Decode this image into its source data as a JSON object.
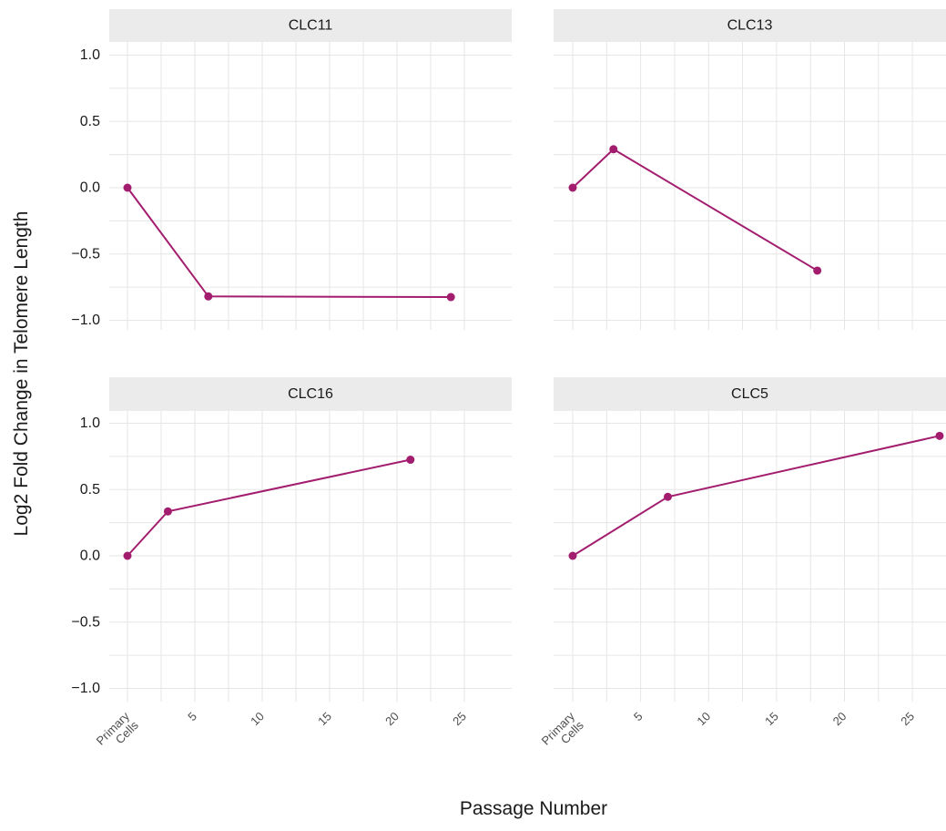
{
  "chart_data": {
    "type": "line",
    "xlabel": "Passage Number",
    "ylabel": "Log2 Fold Change in Telomere Length",
    "xlim": [
      0,
      27
    ],
    "ylim": [
      -1.0,
      1.0
    ],
    "x_ticks": [
      {
        "value": 0,
        "label": [
          "Primary",
          "Cells"
        ]
      },
      {
        "value": 5,
        "label": [
          "5"
        ]
      },
      {
        "value": 10,
        "label": [
          "10"
        ]
      },
      {
        "value": 15,
        "label": [
          "15"
        ]
      },
      {
        "value": 20,
        "label": [
          "20"
        ]
      },
      {
        "value": 25,
        "label": [
          "25"
        ]
      }
    ],
    "y_ticks": [
      {
        "value": 1.0,
        "label": "1.0"
      },
      {
        "value": 0.5,
        "label": "0.5"
      },
      {
        "value": 0.0,
        "label": "0.0"
      },
      {
        "value": -0.5,
        "label": "−0.5"
      },
      {
        "value": -1.0,
        "label": "−1.0"
      }
    ],
    "grid": true,
    "line_color": "#a31d6f",
    "panels": [
      {
        "title": "CLC11",
        "x": [
          0,
          6,
          24
        ],
        "y": [
          0.0,
          -0.82,
          -0.825
        ]
      },
      {
        "title": "CLC13",
        "x": [
          0,
          3,
          18
        ],
        "y": [
          0.0,
          0.29,
          -0.625
        ]
      },
      {
        "title": "CLC16",
        "x": [
          0,
          3,
          21
        ],
        "y": [
          0.0,
          0.335,
          0.725
        ]
      },
      {
        "title": "CLC5",
        "x": [
          0,
          7,
          27
        ],
        "y": [
          0.0,
          0.445,
          0.905
        ]
      }
    ]
  }
}
